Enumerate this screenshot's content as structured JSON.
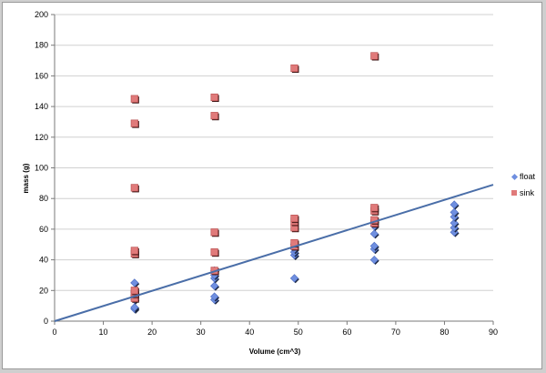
{
  "chart_data": {
    "type": "scatter",
    "xlabel": "Volume (cm^3)",
    "ylabel": "mass (g)",
    "xlim": [
      0,
      90
    ],
    "ylim": [
      0,
      200
    ],
    "x_ticks": [
      0,
      10,
      20,
      30,
      40,
      50,
      60,
      70,
      80,
      90
    ],
    "y_ticks": [
      0,
      20,
      40,
      60,
      80,
      100,
      120,
      140,
      160,
      180,
      200
    ],
    "grid": "horizontal",
    "legend_position": "right",
    "series": [
      {
        "name": "float",
        "marker": "diamond",
        "color": "#6f8fe0",
        "points": [
          [
            16.4,
            8
          ],
          [
            16.4,
            9
          ],
          [
            16.4,
            14
          ],
          [
            16.4,
            17
          ],
          [
            16.4,
            19
          ],
          [
            16.4,
            25
          ],
          [
            32.8,
            14
          ],
          [
            32.8,
            16
          ],
          [
            32.8,
            23
          ],
          [
            32.8,
            28
          ],
          [
            32.8,
            30
          ],
          [
            32.8,
            33
          ],
          [
            49.2,
            28
          ],
          [
            49.2,
            43
          ],
          [
            49.2,
            45
          ],
          [
            49.2,
            47
          ],
          [
            49.2,
            50
          ],
          [
            65.6,
            40
          ],
          [
            65.6,
            47
          ],
          [
            65.6,
            49
          ],
          [
            65.6,
            57
          ],
          [
            65.6,
            62
          ],
          [
            65.6,
            65
          ],
          [
            82,
            58
          ],
          [
            82,
            61
          ],
          [
            82,
            64
          ],
          [
            82,
            68
          ],
          [
            82,
            71
          ],
          [
            82,
            76
          ]
        ]
      },
      {
        "name": "sink",
        "marker": "square",
        "color": "#e07a7a",
        "points": [
          [
            16.4,
            15
          ],
          [
            16.4,
            18
          ],
          [
            16.4,
            20
          ],
          [
            16.4,
            44
          ],
          [
            16.4,
            46
          ],
          [
            16.4,
            87
          ],
          [
            16.4,
            129
          ],
          [
            16.4,
            145
          ],
          [
            32.8,
            33
          ],
          [
            32.8,
            45
          ],
          [
            32.8,
            58
          ],
          [
            32.8,
            134
          ],
          [
            32.8,
            146
          ],
          [
            49.2,
            49
          ],
          [
            49.2,
            51
          ],
          [
            49.2,
            61
          ],
          [
            49.2,
            65
          ],
          [
            49.2,
            67
          ],
          [
            49.2,
            165
          ],
          [
            65.6,
            64
          ],
          [
            65.6,
            66
          ],
          [
            65.6,
            72
          ],
          [
            65.6,
            74
          ],
          [
            65.6,
            173
          ]
        ]
      }
    ],
    "trendline": {
      "type": "linear",
      "x": [
        0,
        90
      ],
      "y": [
        0,
        89
      ],
      "color": "#4a6ea8"
    }
  }
}
